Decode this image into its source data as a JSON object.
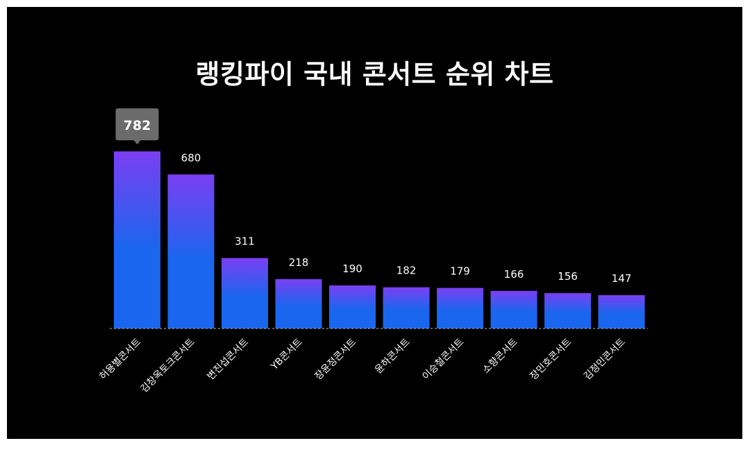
{
  "chart_data": {
    "type": "bar",
    "title": "랭킹파이 국내 콘서트 순위 차트",
    "categories": [
      "허용별콘서트",
      "김창옥토크콘서트",
      "변진섭콘서트",
      "YB콘서트",
      "장윤정콘서트",
      "윤하콘서트",
      "이승철콘서트",
      "소향콘서트",
      "장민호콘서트",
      "김정민콘서트"
    ],
    "values": [
      782,
      680,
      311,
      218,
      190,
      182,
      179,
      166,
      156,
      147
    ],
    "highlight_index": 0,
    "ylim": [
      0,
      782
    ],
    "grid": false,
    "colors": {
      "bar_top": "#7b3ff2",
      "bar_bottom": "#1a66ee",
      "background": "#000000",
      "text": "#ffffff",
      "tooltip": "#6b6b6b"
    }
  }
}
